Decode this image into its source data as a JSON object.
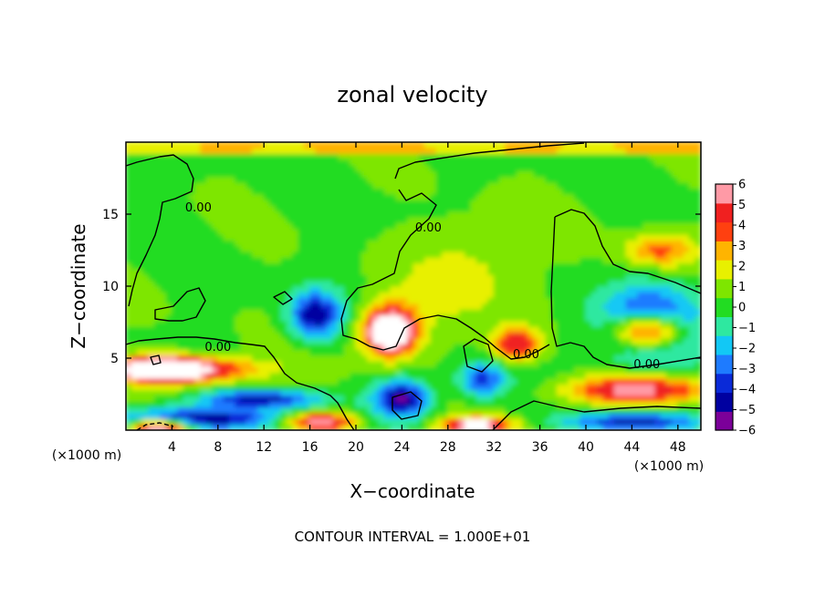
{
  "chart_data": {
    "type": "heatmap",
    "title": "zonal velocity",
    "xlabel": "X−coordinate",
    "ylabel": "Z−coordinate",
    "x_unit_left": "(×1000 m)",
    "x_unit_right": "(×1000 m)",
    "xlim": [
      0,
      50
    ],
    "ylim": [
      0,
      20
    ],
    "xticks": [
      4,
      8,
      12,
      16,
      20,
      24,
      28,
      32,
      36,
      40,
      44,
      48
    ],
    "yticks": [
      5,
      10,
      15
    ],
    "colorbar": {
      "ticks": [
        6,
        5,
        4,
        3,
        2,
        1,
        0,
        -1,
        -2,
        -3,
        -4,
        -5,
        -6
      ],
      "tick_labels": [
        "6",
        "5",
        "4",
        "3",
        "2",
        "1",
        "0",
        "−1",
        "−2",
        "−3",
        "−4",
        "−5",
        "−6"
      ],
      "range": [
        -6,
        6
      ],
      "colors": [
        "#7b0099",
        "#0000a0",
        "#0a2ad8",
        "#1e7bff",
        "#12c8f5",
        "#2ee8a0",
        "#22dc22",
        "#7ee600",
        "#e8f000",
        "#ffb400",
        "#ff4010",
        "#f02020",
        "#ff9aa6"
      ],
      "out_of_range": "#ffffff"
    },
    "contour_labels": [
      {
        "x": 8,
        "z": 5.5,
        "text": "0.00"
      },
      {
        "x": 6.3,
        "z": 15.2,
        "text": "0.00"
      },
      {
        "x": 26.3,
        "z": 13.8,
        "text": "0.00"
      },
      {
        "x": 34.8,
        "z": 5.0,
        "text": "0.00"
      },
      {
        "x": 45.3,
        "z": 4.3,
        "text": "0.00"
      }
    ],
    "features": [
      {
        "type": "jet",
        "x": 5,
        "z": 4.2,
        "rx": 6,
        "rz": 0.9,
        "value": 6.5
      },
      {
        "type": "jet",
        "x": 3,
        "z": 4.3,
        "rx": 2.8,
        "rz": 0.7,
        "value": 8
      },
      {
        "type": "jet",
        "x": 12,
        "z": 2.2,
        "rx": 5,
        "rz": 0.6,
        "value": -4.5
      },
      {
        "type": "jet",
        "x": 6,
        "z": 0.8,
        "rx": 7,
        "rz": 0.8,
        "value": -5.5
      },
      {
        "type": "jet",
        "x": 3,
        "z": 0.3,
        "rx": 2.5,
        "rz": 0.5,
        "value": 8
      },
      {
        "type": "jet",
        "x": 17,
        "z": 0.6,
        "rx": 3,
        "rz": 0.6,
        "value": 6
      },
      {
        "type": "jet",
        "x": 16.5,
        "z": 8.0,
        "rx": 2.2,
        "rz": 1.6,
        "value": -5.2
      },
      {
        "type": "jet",
        "x": 23,
        "z": 7.0,
        "rx": 2.6,
        "rz": 2.0,
        "value": 5.5
      },
      {
        "type": "jet",
        "x": 23,
        "z": 6.8,
        "rx": 1.5,
        "rz": 1.0,
        "value": 8
      },
      {
        "type": "jet",
        "x": 24,
        "z": 2.2,
        "rx": 2.4,
        "rz": 1.3,
        "value": -5.6
      },
      {
        "type": "jet",
        "x": 31,
        "z": 3.5,
        "rx": 2,
        "rz": 1.2,
        "value": -4
      },
      {
        "type": "jet",
        "x": 34,
        "z": 6.0,
        "rx": 2,
        "rz": 1.2,
        "value": 5
      },
      {
        "type": "jet",
        "x": 30.5,
        "z": 0.4,
        "rx": 3,
        "rz": 0.5,
        "value": 7
      },
      {
        "type": "jet",
        "x": 45.5,
        "z": 7.2,
        "rx": 4.6,
        "rz": 2.4,
        "value": -5.8
      },
      {
        "type": "jet",
        "x": 45.5,
        "z": 6.9,
        "rx": 3.2,
        "rz": 1.3,
        "value": 9
      },
      {
        "type": "jet",
        "x": 44.5,
        "z": 2.8,
        "rx": 6,
        "rz": 1.0,
        "value": 5.5
      },
      {
        "type": "jet",
        "x": 44,
        "z": 0.6,
        "rx": 5.5,
        "rz": 0.6,
        "value": -5
      },
      {
        "type": "jet",
        "x": 46.5,
        "z": 12.5,
        "rx": 3,
        "rz": 1.2,
        "value": 3.2
      },
      {
        "type": "jet",
        "x": 30,
        "z": 11,
        "rx": 5,
        "rz": 3.5,
        "value": 1.6
      }
    ]
  },
  "footer": {
    "contour_interval": "CONTOUR INTERVAL = 1.000E+01"
  }
}
